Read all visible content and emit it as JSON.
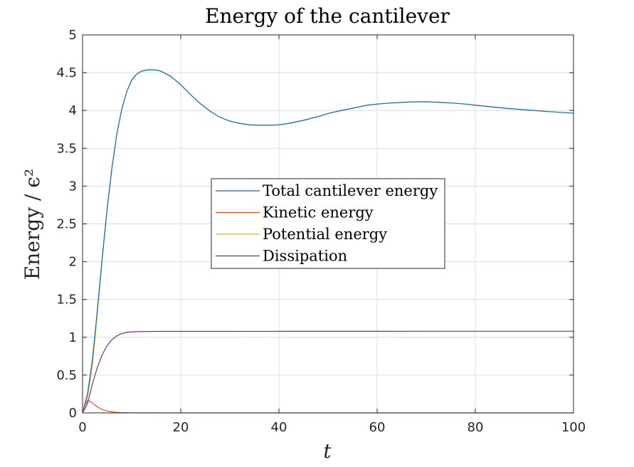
{
  "chart_data": {
    "type": "line",
    "title": "Energy of the cantilever",
    "xlabel": "t",
    "ylabel": "Energy / ϵ²",
    "xlim": [
      0,
      100
    ],
    "ylim": [
      0,
      5
    ],
    "xticks": [
      0,
      20,
      40,
      60,
      80,
      100
    ],
    "yticks": [
      0,
      0.5,
      1,
      1.5,
      2,
      2.5,
      3,
      3.5,
      4,
      4.5,
      5
    ],
    "ytick_labels": [
      "0",
      "0.5",
      "1",
      "1.5",
      "2",
      "2.5",
      "3",
      "3.5",
      "4",
      "4.5",
      "5"
    ],
    "xtick_labels": [
      "0",
      "20",
      "40",
      "60",
      "80",
      "100"
    ],
    "grid": true,
    "legend_position": "center",
    "series": [
      {
        "name": "Total cantilever energy",
        "color": "#0072BD",
        "x": [
          0,
          1,
          2,
          3,
          4,
          5,
          6,
          7,
          8,
          9,
          10,
          11,
          12,
          13,
          14,
          15,
          16,
          18,
          20,
          22,
          24,
          26,
          28,
          30,
          32,
          34,
          36,
          38,
          40,
          42,
          45,
          48,
          50,
          52,
          55,
          58,
          60,
          63,
          66,
          68,
          70,
          72,
          75,
          78,
          80,
          83,
          86,
          90,
          95,
          100
        ],
        "y": [
          0,
          0.25,
          0.7,
          1.35,
          2.05,
          2.7,
          3.25,
          3.7,
          4.02,
          4.25,
          4.4,
          4.48,
          4.52,
          4.535,
          4.54,
          4.535,
          4.52,
          4.45,
          4.34,
          4.21,
          4.09,
          3.99,
          3.91,
          3.86,
          3.83,
          3.81,
          3.805,
          3.805,
          3.81,
          3.83,
          3.87,
          3.92,
          3.96,
          3.99,
          4.03,
          4.07,
          4.085,
          4.1,
          4.11,
          4.115,
          4.115,
          4.11,
          4.1,
          4.085,
          4.07,
          4.05,
          4.03,
          4.01,
          3.985,
          3.965
        ]
      },
      {
        "name": "Kinetic energy",
        "color": "#D95319",
        "x": [
          0,
          0.5,
          1,
          1.5,
          2,
          3,
          4,
          5,
          6,
          7,
          8,
          10,
          12,
          15,
          20,
          30,
          40,
          60,
          80,
          100
        ],
        "y": [
          0,
          0.1,
          0.16,
          0.155,
          0.13,
          0.08,
          0.045,
          0.025,
          0.013,
          0.007,
          0.004,
          0.002,
          0.001,
          0.0,
          0.0,
          0.0,
          0.0,
          0.0,
          0.0,
          0.0
        ]
      },
      {
        "name": "Potential energy",
        "color": "#EDB120",
        "x": [
          0,
          1,
          2,
          3,
          4,
          5,
          6,
          7,
          8,
          9,
          10,
          11,
          12,
          13,
          14,
          15,
          16,
          18,
          20,
          22,
          24,
          26,
          28,
          30,
          32,
          34,
          36,
          38,
          40,
          42,
          45,
          48,
          50,
          52,
          55,
          58,
          60,
          63,
          66,
          68,
          70,
          72,
          75,
          78,
          80,
          83,
          86,
          90,
          95,
          100
        ],
        "y": [
          0,
          0.2,
          0.62,
          1.3,
          2.02,
          2.68,
          3.24,
          3.69,
          4.02,
          4.25,
          4.4,
          4.48,
          4.52,
          4.535,
          4.54,
          4.535,
          4.52,
          4.45,
          4.34,
          4.21,
          4.09,
          3.99,
          3.91,
          3.86,
          3.83,
          3.81,
          3.805,
          3.805,
          3.81,
          3.83,
          3.87,
          3.92,
          3.96,
          3.99,
          4.03,
          4.07,
          4.085,
          4.1,
          4.11,
          4.115,
          4.115,
          4.11,
          4.1,
          4.085,
          4.07,
          4.05,
          4.03,
          4.01,
          3.985,
          3.965
        ]
      },
      {
        "name": "Dissipation",
        "color": "#7E2F8E",
        "x": [
          0,
          1,
          2,
          3,
          4,
          5,
          6,
          7,
          8,
          9,
          10,
          12,
          15,
          20,
          30,
          40,
          60,
          80,
          100
        ],
        "y": [
          0,
          0.12,
          0.38,
          0.6,
          0.77,
          0.89,
          0.97,
          1.02,
          1.05,
          1.065,
          1.072,
          1.076,
          1.078,
          1.078,
          1.078,
          1.079,
          1.079,
          1.08,
          1.08
        ]
      }
    ]
  }
}
